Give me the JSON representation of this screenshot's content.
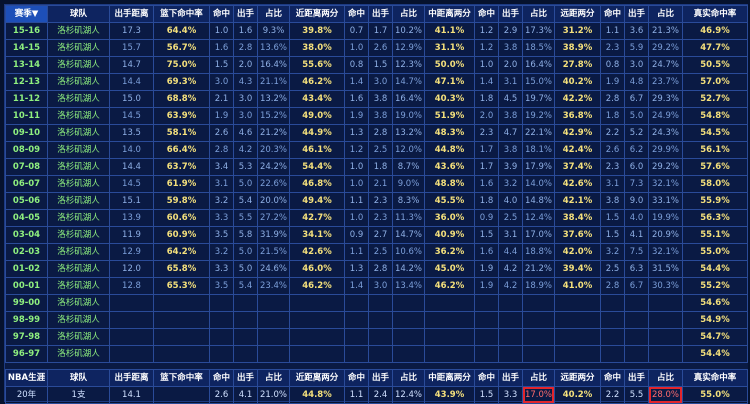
{
  "header": [
    "赛季▼",
    "球队",
    "出手距离",
    "篮下命中率",
    "命中",
    "出手",
    "占比",
    "近距离两分",
    "命中",
    "出手",
    "占比",
    "中距离两分",
    "命中",
    "出手",
    "占比",
    "远距两分",
    "命中",
    "出手",
    "占比",
    "真实命中率"
  ],
  "rows": [
    [
      "15-16",
      "洛杉矶湖人",
      "17.3",
      "64.4%",
      "1.0",
      "1.6",
      "9.3%",
      "39.8%",
      "0.7",
      "1.7",
      "10.2%",
      "41.1%",
      "1.2",
      "2.9",
      "17.3%",
      "31.2%",
      "1.1",
      "3.6",
      "21.3%",
      "46.9%"
    ],
    [
      "14-15",
      "洛杉矶湖人",
      "15.7",
      "56.7%",
      "1.6",
      "2.8",
      "13.6%",
      "38.0%",
      "1.0",
      "2.6",
      "12.9%",
      "31.1%",
      "1.2",
      "3.8",
      "18.5%",
      "38.9%",
      "2.3",
      "5.9",
      "29.2%",
      "47.7%"
    ],
    [
      "13-14",
      "洛杉矶湖人",
      "14.7",
      "75.0%",
      "1.5",
      "2.0",
      "16.4%",
      "55.6%",
      "0.8",
      "1.5",
      "12.3%",
      "50.0%",
      "1.0",
      "2.0",
      "16.4%",
      "27.8%",
      "0.8",
      "3.0",
      "24.7%",
      "50.5%"
    ],
    [
      "12-13",
      "洛杉矶湖人",
      "14.4",
      "69.3%",
      "3.0",
      "4.3",
      "21.1%",
      "46.2%",
      "1.4",
      "3.0",
      "14.7%",
      "47.1%",
      "1.4",
      "3.1",
      "15.0%",
      "40.2%",
      "1.9",
      "4.8",
      "23.7%",
      "57.0%"
    ],
    [
      "11-12",
      "洛杉矶湖人",
      "15.0",
      "68.8%",
      "2.1",
      "3.0",
      "13.2%",
      "43.4%",
      "1.6",
      "3.8",
      "16.4%",
      "40.3%",
      "1.8",
      "4.5",
      "19.7%",
      "42.2%",
      "2.8",
      "6.7",
      "29.3%",
      "52.7%"
    ],
    [
      "10-11",
      "洛杉矶湖人",
      "14.5",
      "63.9%",
      "1.9",
      "3.0",
      "15.2%",
      "49.0%",
      "1.9",
      "3.8",
      "19.0%",
      "51.9%",
      "2.0",
      "3.8",
      "19.2%",
      "36.8%",
      "1.8",
      "5.0",
      "24.9%",
      "54.8%"
    ],
    [
      "09-10",
      "洛杉矶湖人",
      "13.5",
      "58.1%",
      "2.6",
      "4.6",
      "21.2%",
      "44.9%",
      "1.3",
      "2.8",
      "13.2%",
      "48.3%",
      "2.3",
      "4.7",
      "22.1%",
      "42.9%",
      "2.2",
      "5.2",
      "24.3%",
      "54.5%"
    ],
    [
      "08-09",
      "洛杉矶湖人",
      "14.0",
      "66.4%",
      "2.8",
      "4.2",
      "20.3%",
      "46.1%",
      "1.2",
      "2.5",
      "12.0%",
      "44.8%",
      "1.7",
      "3.8",
      "18.1%",
      "42.4%",
      "2.6",
      "6.2",
      "29.9%",
      "56.1%"
    ],
    [
      "07-08",
      "洛杉矶湖人",
      "14.4",
      "63.7%",
      "3.4",
      "5.3",
      "24.2%",
      "54.4%",
      "1.0",
      "1.8",
      "8.7%",
      "43.6%",
      "1.7",
      "3.9",
      "17.9%",
      "37.4%",
      "2.3",
      "6.0",
      "29.2%",
      "57.6%"
    ],
    [
      "06-07",
      "洛杉矶湖人",
      "14.5",
      "61.9%",
      "3.1",
      "5.0",
      "22.6%",
      "46.8%",
      "1.0",
      "2.1",
      "9.0%",
      "48.8%",
      "1.6",
      "3.2",
      "14.0%",
      "42.6%",
      "3.1",
      "7.3",
      "32.1%",
      "58.0%"
    ],
    [
      "05-06",
      "洛杉矶湖人",
      "15.1",
      "59.8%",
      "3.2",
      "5.4",
      "20.0%",
      "49.4%",
      "1.1",
      "2.3",
      "8.3%",
      "45.5%",
      "1.8",
      "4.0",
      "14.8%",
      "42.1%",
      "3.8",
      "9.0",
      "33.1%",
      "55.9%"
    ],
    [
      "04-05",
      "洛杉矶湖人",
      "13.9",
      "60.6%",
      "3.3",
      "5.5",
      "27.2%",
      "42.7%",
      "1.0",
      "2.3",
      "11.3%",
      "36.0%",
      "0.9",
      "2.5",
      "12.4%",
      "38.4%",
      "1.5",
      "4.0",
      "19.9%",
      "56.3%"
    ],
    [
      "03-04",
      "洛杉矶湖人",
      "11.9",
      "60.9%",
      "3.5",
      "5.8",
      "31.9%",
      "34.1%",
      "0.9",
      "2.7",
      "14.7%",
      "40.9%",
      "1.5",
      "3.1",
      "17.0%",
      "37.6%",
      "1.5",
      "4.1",
      "20.9%",
      "55.1%"
    ],
    [
      "02-03",
      "洛杉矶湖人",
      "12.9",
      "64.2%",
      "3.2",
      "5.0",
      "21.5%",
      "42.6%",
      "1.1",
      "2.5",
      "10.6%",
      "36.2%",
      "1.6",
      "4.4",
      "18.8%",
      "42.0%",
      "3.2",
      "7.5",
      "32.1%",
      "55.0%"
    ],
    [
      "01-02",
      "洛杉矶湖人",
      "12.0",
      "65.8%",
      "3.3",
      "5.0",
      "24.6%",
      "46.0%",
      "1.3",
      "2.8",
      "14.2%",
      "45.0%",
      "1.9",
      "4.2",
      "21.2%",
      "39.4%",
      "2.5",
      "6.3",
      "31.5%",
      "54.4%"
    ],
    [
      "00-01",
      "洛杉矶湖人",
      "12.8",
      "65.3%",
      "3.5",
      "5.4",
      "23.4%",
      "46.2%",
      "1.4",
      "3.0",
      "13.4%",
      "46.2%",
      "1.9",
      "4.2",
      "18.9%",
      "41.0%",
      "2.8",
      "6.7",
      "30.3%",
      "55.2%"
    ],
    [
      "99-00",
      "洛杉矶湖人",
      "",
      "",
      "",
      "",
      "",
      "",
      "",
      "",
      "",
      "",
      "",
      "",
      "",
      "",
      "",
      "",
      "",
      "54.6%"
    ],
    [
      "98-99",
      "洛杉矶湖人",
      "",
      "",
      "",
      "",
      "",
      "",
      "",
      "",
      "",
      "",
      "",
      "",
      "",
      "",
      "",
      "",
      "",
      "54.9%"
    ],
    [
      "97-98",
      "洛杉矶湖人",
      "",
      "",
      "",
      "",
      "",
      "",
      "",
      "",
      "",
      "",
      "",
      "",
      "",
      "",
      "",
      "",
      "",
      "54.7%"
    ],
    [
      "96-97",
      "洛杉矶湖人",
      "",
      "",
      "",
      "",
      "",
      "",
      "",
      "",
      "",
      "",
      "",
      "",
      "",
      "",
      "",
      "",
      "",
      "54.4%"
    ]
  ],
  "total_header": [
    "NBA生涯",
    "球队",
    "出手距离",
    "篮下命中率",
    "命中",
    "出手",
    "占比",
    "近距离两分",
    "命中",
    "出手",
    "占比",
    "中距离两分",
    "命中",
    "出手",
    "占比",
    "远距两分",
    "命中",
    "出手",
    "占比",
    "真实命中率"
  ],
  "total_row": [
    "20年",
    "1支",
    "14.1",
    "",
    "2.6",
    "4.1",
    "21.0%",
    "44.8%",
    "1.1",
    "2.4",
    "12.4%",
    "43.9%",
    "1.5",
    "3.3",
    "17.0%",
    "40.2%",
    "2.2",
    "5.5",
    "28.0%",
    "55.0%"
  ],
  "highlight_columns": [
    3,
    7,
    11,
    15,
    19
  ],
  "circled_total_cells": [
    14,
    18
  ],
  "colors": {
    "season": "#8ff07f",
    "highlight": "#f4e07c",
    "circle": "#e3252b"
  }
}
